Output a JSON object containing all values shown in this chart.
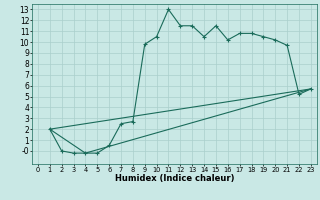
{
  "xlabel": "Humidex (Indice chaleur)",
  "background_color": "#c9e8e5",
  "grid_color": "#aacfcc",
  "line_color": "#1a6b5a",
  "xlim": [
    -0.5,
    23.5
  ],
  "ylim": [
    -1.2,
    13.5
  ],
  "xticks": [
    0,
    1,
    2,
    3,
    4,
    5,
    6,
    7,
    8,
    9,
    10,
    11,
    12,
    13,
    14,
    15,
    16,
    17,
    18,
    19,
    20,
    21,
    22,
    23
  ],
  "yticks": [
    0,
    1,
    2,
    3,
    4,
    5,
    6,
    7,
    8,
    9,
    10,
    11,
    12,
    13
  ],
  "ytick_labels": [
    "-0",
    "1",
    "2",
    "3",
    "4",
    "5",
    "6",
    "7",
    "8",
    "9",
    "10",
    "11",
    "12",
    "13"
  ],
  "curve_x": [
    1,
    2,
    3,
    4,
    5,
    6,
    7,
    8,
    9,
    10,
    11,
    12,
    13,
    14,
    15,
    16,
    17,
    18,
    19,
    20,
    21,
    22,
    23
  ],
  "curve_y": [
    2.0,
    0.0,
    -0.2,
    -0.2,
    -0.2,
    0.5,
    2.5,
    2.7,
    9.8,
    10.5,
    13.0,
    11.5,
    11.5,
    10.5,
    11.5,
    10.2,
    10.8,
    10.8,
    10.5,
    10.2,
    9.7,
    5.2,
    5.7
  ],
  "line1_x": [
    1,
    23
  ],
  "line1_y": [
    2.0,
    5.7
  ],
  "line2_x": [
    1,
    4,
    23
  ],
  "line2_y": [
    2.0,
    -0.2,
    5.7
  ]
}
